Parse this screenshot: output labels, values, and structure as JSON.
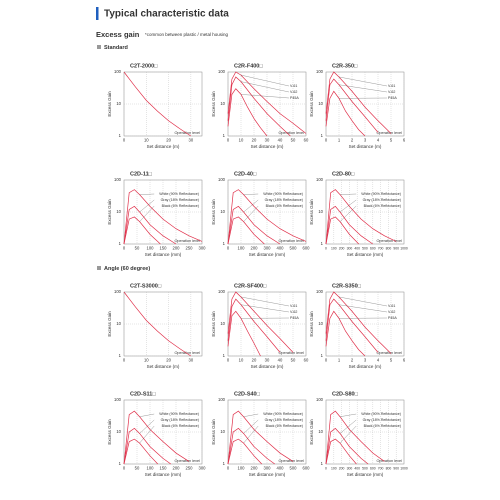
{
  "header": {
    "title": "Typical characteristic data",
    "section": "Excess gain",
    "note": "*common between plastic / metal housing",
    "group1": "Standard",
    "group2": "Angle (60 degree)"
  },
  "chart_data": [
    {
      "type": "line",
      "title": "C2T-2000□",
      "y_label": "Excess Gain",
      "x_label": "Set distance (m)",
      "annotation": "Operation level",
      "log_y": true,
      "grid": true,
      "ylim": [
        1,
        100
      ],
      "yticks": [
        1,
        10,
        100
      ],
      "xlim": [
        0,
        35
      ],
      "xticks": [
        0,
        10,
        20,
        30
      ],
      "color": "#e0304a",
      "x": [
        0,
        5,
        10,
        15,
        20,
        25,
        30
      ],
      "values": [
        100,
        35,
        13,
        6,
        3,
        1.7,
        1
      ]
    },
    {
      "type": "line",
      "title": "C2R-F400□",
      "y_label": "Excess Gain",
      "x_label": "Set distance (m)",
      "annotation": "Operation level",
      "log_y": true,
      "grid": true,
      "ylim": [
        1,
        100
      ],
      "yticks": [
        1,
        10,
        100
      ],
      "xlim": [
        0,
        60
      ],
      "xticks": [
        0,
        10,
        20,
        30,
        40,
        50,
        60
      ],
      "series": [
        {
          "name": "V-61",
          "color": "#e0304a",
          "x": [
            0,
            3,
            6,
            10,
            20,
            30,
            40,
            50,
            60
          ],
          "values": [
            5,
            60,
            100,
            80,
            30,
            12,
            5,
            2.5,
            1.2
          ]
        },
        {
          "name": "V-62",
          "color": "#e0304a",
          "x": [
            0,
            3,
            6,
            10,
            20,
            30,
            40,
            48
          ],
          "values": [
            3,
            40,
            70,
            50,
            15,
            5,
            2,
            1
          ]
        },
        {
          "name": "P45A",
          "color": "#e0304a",
          "x": [
            0,
            3,
            6,
            10,
            15,
            20,
            25,
            30
          ],
          "values": [
            2,
            20,
            30,
            20,
            8,
            3.5,
            1.8,
            1
          ]
        }
      ]
    },
    {
      "type": "line",
      "title": "C2R-350□",
      "y_label": "Excess Gain",
      "x_label": "Set distance (m)",
      "annotation": "Operation level",
      "log_y": true,
      "grid": true,
      "ylim": [
        1,
        100
      ],
      "yticks": [
        1,
        10,
        100
      ],
      "xlim": [
        0,
        6
      ],
      "xticks": [
        0,
        1,
        2,
        3,
        4,
        5,
        6
      ],
      "series": [
        {
          "name": "V-61",
          "color": "#e0304a",
          "x": [
            0,
            0.3,
            0.6,
            1,
            2,
            3,
            4,
            5
          ],
          "values": [
            5,
            60,
            100,
            70,
            25,
            8,
            3,
            1.2
          ]
        },
        {
          "name": "V-62",
          "color": "#e0304a",
          "x": [
            0,
            0.3,
            0.6,
            1,
            2,
            3,
            4
          ],
          "values": [
            3,
            40,
            60,
            40,
            12,
            4,
            1.3
          ]
        },
        {
          "name": "P45A",
          "color": "#e0304a",
          "x": [
            0,
            0.3,
            0.6,
            1,
            1.5,
            2,
            2.5,
            3
          ],
          "values": [
            2,
            15,
            25,
            15,
            6,
            3,
            1.6,
            1
          ]
        }
      ]
    },
    {
      "type": "line",
      "title": "C2D-11□",
      "y_label": "Excess Gain",
      "x_label": "Set distance (mm)",
      "annotation": "Operation level",
      "log_y": true,
      "grid": true,
      "ylim": [
        1,
        100
      ],
      "yticks": [
        1,
        10,
        100
      ],
      "xlim": [
        0,
        300
      ],
      "xticks": [
        0,
        50,
        100,
        150,
        200,
        250,
        300
      ],
      "series": [
        {
          "name": "White (90% Reflectance)",
          "color": "#e0304a",
          "x": [
            0,
            20,
            40,
            60,
            100,
            150,
            200,
            250,
            300
          ],
          "values": [
            1,
            40,
            50,
            35,
            15,
            6,
            3,
            1.8,
            1.2
          ]
        },
        {
          "name": "Gray (18% Reflectance)",
          "color": "#e0304a",
          "x": [
            0,
            20,
            40,
            60,
            100,
            150,
            200
          ],
          "values": [
            1,
            12,
            15,
            10,
            4,
            1.8,
            1
          ]
        },
        {
          "name": "Black (6% Reflectance)",
          "color": "#e0304a",
          "x": [
            0,
            20,
            40,
            60,
            100,
            140
          ],
          "values": [
            1,
            6,
            7,
            5,
            2,
            1
          ]
        }
      ]
    },
    {
      "type": "line",
      "title": "C2D-40□",
      "y_label": "Excess Gain",
      "x_label": "Set distance (mm)",
      "annotation": "Operation level",
      "log_y": true,
      "grid": true,
      "ylim": [
        1,
        100
      ],
      "yticks": [
        1,
        10,
        100
      ],
      "xlim": [
        0,
        600
      ],
      "xticks": [
        0,
        100,
        200,
        300,
        400,
        500,
        600
      ],
      "series": [
        {
          "name": "White (90% Reflectance)",
          "color": "#e0304a",
          "x": [
            0,
            40,
            80,
            120,
            200,
            300,
            400,
            500,
            600
          ],
          "values": [
            1,
            40,
            50,
            35,
            15,
            6,
            3,
            1.8,
            1.2
          ]
        },
        {
          "name": "Gray (18% Reflectance)",
          "color": "#e0304a",
          "x": [
            0,
            40,
            80,
            120,
            200,
            300,
            400
          ],
          "values": [
            1,
            12,
            15,
            10,
            4,
            1.8,
            1
          ]
        },
        {
          "name": "Black (6% Reflectance)",
          "color": "#e0304a",
          "x": [
            0,
            40,
            80,
            120,
            200,
            280
          ],
          "values": [
            1,
            6,
            7,
            5,
            2,
            1
          ]
        }
      ]
    },
    {
      "type": "line",
      "title": "C2D-80□",
      "y_label": "Excess Gain",
      "x_label": "Set distance (mm)",
      "annotation": "Operation level",
      "log_y": true,
      "grid": true,
      "ylim": [
        1,
        100
      ],
      "yticks": [
        1,
        10,
        100
      ],
      "xlim": [
        0,
        1000
      ],
      "xticks": [
        0,
        100,
        200,
        300,
        400,
        500,
        600,
        700,
        800,
        900,
        1000
      ],
      "series": [
        {
          "name": "White (90% Reflectance)",
          "color": "#e0304a",
          "x": [
            0,
            60,
            120,
            180,
            300,
            450,
            600,
            750,
            900
          ],
          "values": [
            1,
            40,
            50,
            35,
            15,
            6,
            3,
            1.8,
            1.2
          ]
        },
        {
          "name": "Gray (18% Reflectance)",
          "color": "#e0304a",
          "x": [
            0,
            60,
            120,
            180,
            300,
            450,
            600
          ],
          "values": [
            1,
            12,
            15,
            10,
            4,
            1.8,
            1
          ]
        },
        {
          "name": "Black (6% Reflectance)",
          "color": "#e0304a",
          "x": [
            0,
            60,
            120,
            180,
            300,
            420
          ],
          "values": [
            1,
            6,
            7,
            5,
            2,
            1
          ]
        }
      ]
    },
    {
      "type": "line",
      "title": "C2T-S3000□",
      "y_label": "Excess Gain",
      "x_label": "Set distance (m)",
      "annotation": "Operation level",
      "log_y": true,
      "grid": true,
      "ylim": [
        1,
        100
      ],
      "yticks": [
        1,
        10,
        100
      ],
      "xlim": [
        0,
        35
      ],
      "xticks": [
        0,
        10,
        20,
        30
      ],
      "color": "#e0304a",
      "x": [
        0,
        5,
        10,
        15,
        20,
        25,
        30
      ],
      "values": [
        100,
        35,
        13,
        6,
        3,
        1.7,
        1
      ]
    },
    {
      "type": "line",
      "title": "C2R-SF400□",
      "y_label": "Excess Gain",
      "x_label": "Set distance (m)",
      "annotation": "Operation level",
      "log_y": true,
      "grid": true,
      "ylim": [
        1,
        100
      ],
      "yticks": [
        1,
        10,
        100
      ],
      "xlim": [
        0,
        60
      ],
      "xticks": [
        0,
        10,
        20,
        30,
        40,
        50,
        60
      ],
      "series": [
        {
          "name": "V-61",
          "color": "#e0304a",
          "x": [
            0,
            3,
            6,
            10,
            20,
            30,
            40,
            50
          ],
          "values": [
            5,
            60,
            100,
            70,
            25,
            9,
            3.5,
            1.3
          ]
        },
        {
          "name": "V-62",
          "color": "#e0304a",
          "x": [
            0,
            3,
            6,
            10,
            20,
            30,
            40
          ],
          "values": [
            3,
            35,
            60,
            40,
            12,
            4,
            1.3
          ]
        },
        {
          "name": "P45A",
          "color": "#e0304a",
          "x": [
            0,
            3,
            6,
            10,
            15,
            20,
            25
          ],
          "values": [
            2,
            18,
            25,
            15,
            6,
            2.5,
            1
          ]
        }
      ]
    },
    {
      "type": "line",
      "title": "C2R-S350□",
      "y_label": "Excess Gain",
      "x_label": "Set distance (m)",
      "annotation": "Operation level",
      "log_y": true,
      "grid": true,
      "ylim": [
        1,
        100
      ],
      "yticks": [
        1,
        10,
        100
      ],
      "xlim": [
        0,
        6
      ],
      "xticks": [
        0,
        1,
        2,
        3,
        4,
        5,
        6
      ],
      "series": [
        {
          "name": "V-61",
          "color": "#e0304a",
          "x": [
            0,
            0.3,
            0.6,
            1,
            2,
            3,
            4,
            5
          ],
          "values": [
            5,
            60,
            100,
            70,
            25,
            8,
            3,
            1.2
          ]
        },
        {
          "name": "V-62",
          "color": "#e0304a",
          "x": [
            0,
            0.3,
            0.6,
            1,
            2,
            3,
            4
          ],
          "values": [
            3,
            40,
            60,
            40,
            12,
            4,
            1.3
          ]
        },
        {
          "name": "P45A",
          "color": "#e0304a",
          "x": [
            0,
            0.3,
            0.6,
            1,
            1.5,
            2,
            2.5,
            3
          ],
          "values": [
            2,
            15,
            25,
            15,
            6,
            3,
            1.6,
            1
          ]
        }
      ]
    },
    {
      "type": "line",
      "title": "C2D-S11□",
      "y_label": "Excess Gain",
      "x_label": "Set distance (mm)",
      "annotation": "Operation level",
      "log_y": true,
      "grid": true,
      "ylim": [
        1,
        100
      ],
      "yticks": [
        1,
        10,
        100
      ],
      "xlim": [
        0,
        300
      ],
      "xticks": [
        0,
        50,
        100,
        150,
        200,
        250,
        300
      ],
      "series": [
        {
          "name": "White (90% Reflectance)",
          "color": "#e0304a",
          "x": [
            0,
            20,
            40,
            60,
            100,
            150,
            200,
            250
          ],
          "values": [
            1,
            35,
            45,
            30,
            12,
            5,
            2.2,
            1.2
          ]
        },
        {
          "name": "Gray (18% Reflectance)",
          "color": "#e0304a",
          "x": [
            0,
            20,
            40,
            60,
            100,
            150,
            180
          ],
          "values": [
            1,
            10,
            13,
            9,
            3.5,
            1.5,
            1
          ]
        },
        {
          "name": "Black (6% Reflectance)",
          "color": "#e0304a",
          "x": [
            0,
            20,
            40,
            60,
            100,
            130
          ],
          "values": [
            1,
            5,
            6,
            4.5,
            1.8,
            1
          ]
        }
      ]
    },
    {
      "type": "line",
      "title": "C2D-S40□",
      "y_label": "Excess Gain",
      "x_label": "Set distance (mm)",
      "annotation": "Operation level",
      "log_y": true,
      "grid": true,
      "ylim": [
        1,
        100
      ],
      "yticks": [
        1,
        10,
        100
      ],
      "xlim": [
        0,
        600
      ],
      "xticks": [
        0,
        100,
        200,
        300,
        400,
        500,
        600
      ],
      "series": [
        {
          "name": "White (90% Reflectance)",
          "color": "#e0304a",
          "x": [
            0,
            40,
            80,
            120,
            200,
            300,
            400,
            500
          ],
          "values": [
            1,
            35,
            45,
            30,
            12,
            5,
            2.2,
            1.2
          ]
        },
        {
          "name": "Gray (18% Reflectance)",
          "color": "#e0304a",
          "x": [
            0,
            40,
            80,
            120,
            200,
            300,
            360
          ],
          "values": [
            1,
            10,
            13,
            9,
            3.5,
            1.5,
            1
          ]
        },
        {
          "name": "Black (6% Reflectance)",
          "color": "#e0304a",
          "x": [
            0,
            40,
            80,
            120,
            200,
            260
          ],
          "values": [
            1,
            5,
            6,
            4.5,
            1.8,
            1
          ]
        }
      ]
    },
    {
      "type": "line",
      "title": "C2D-S80□",
      "y_label": "Excess Gain",
      "x_label": "Set distance (mm)",
      "annotation": "Operation level",
      "log_y": true,
      "grid": true,
      "ylim": [
        1,
        100
      ],
      "yticks": [
        1,
        10,
        100
      ],
      "xlim": [
        0,
        1000
      ],
      "xticks": [
        0,
        100,
        200,
        300,
        400,
        500,
        600,
        700,
        800,
        900,
        1000
      ],
      "series": [
        {
          "name": "White (90% Reflectance)",
          "color": "#e0304a",
          "x": [
            0,
            60,
            120,
            180,
            300,
            450,
            600,
            750
          ],
          "values": [
            1,
            35,
            45,
            30,
            12,
            5,
            2.2,
            1.2
          ]
        },
        {
          "name": "Gray (18% Reflectance)",
          "color": "#e0304a",
          "x": [
            0,
            60,
            120,
            180,
            300,
            450,
            540
          ],
          "values": [
            1,
            10,
            13,
            9,
            3.5,
            1.5,
            1
          ]
        },
        {
          "name": "Black (6% Reflectance)",
          "color": "#e0304a",
          "x": [
            0,
            60,
            120,
            180,
            300,
            390
          ],
          "values": [
            1,
            5,
            6,
            4.5,
            1.8,
            1
          ]
        }
      ]
    }
  ]
}
